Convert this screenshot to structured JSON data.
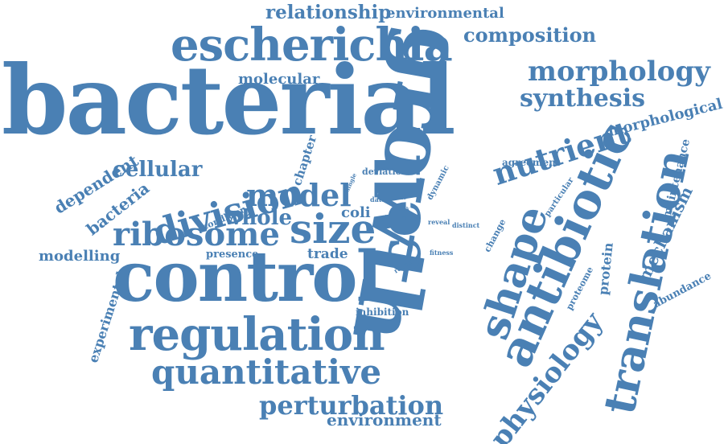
{
  "words": {
    "bacterial": "bacterial",
    "growth": "growth",
    "cell": "cell",
    "control": "control",
    "escherichia": "escherichia",
    "regulation": "regulation",
    "antibiotic": "antibiotic",
    "shape": "shape",
    "translation": "translation",
    "quantitative": "quantitative",
    "division": "division",
    "ribosome": "ribosome",
    "size": "size",
    "model": "model",
    "nutrient": "nutrient",
    "physiology": "physiology",
    "perturbation": "perturbation",
    "morphology": "morphology",
    "synthesis": "synthesis",
    "composition": "composition",
    "relationship": "relationship",
    "environmental": "environmental",
    "environment": "environment",
    "cellular": "cellular",
    "whole": "whole",
    "molecular": "molecular",
    "morphological": "morphological",
    "dependent": "dependent",
    "bacteria": "bacteria",
    "modelling": "modelling",
    "experimental": "experimental",
    "chapter": "chapter",
    "coli": "coli",
    "trade": "trade",
    "presence": "presence",
    "condition": "condition",
    "protein": "protein",
    "mechanism": "mechanism",
    "maintenance": "maintenance",
    "abundance": "abundance",
    "proteome": "proteome",
    "agreement": "agreement",
    "particular": "particular",
    "change": "change",
    "inhibition": "inhibition",
    "deviation": "deviation",
    "dynamic": "dynamic",
    "single": "single",
    "data": "data",
    "mode": "mode",
    "link": "link",
    "rate": "rate",
    "off": "off",
    "require": "require",
    "fitness": "fitness",
    "reveal": "reveal",
    "distinct": "distinct"
  },
  "colors": {
    "word": "#4a80b4",
    "background": "#ffffff"
  }
}
